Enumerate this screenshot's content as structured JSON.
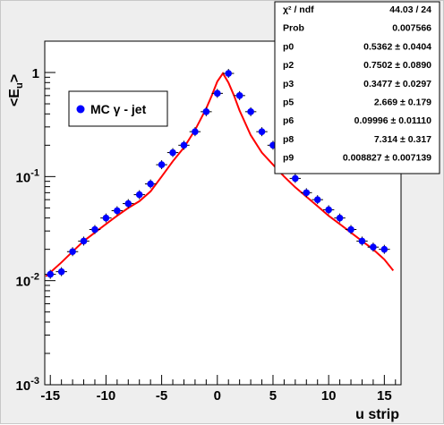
{
  "chart_data": {
    "type": "scatter",
    "xlabel": "u strip",
    "ylabel": "<E_u>",
    "xlim": [
      -15.5,
      16.5
    ],
    "ylim": [
      0.001,
      2
    ],
    "yscale": "log",
    "grid": false,
    "legend_position": "top-left",
    "x_ticks": [
      -15,
      -10,
      -5,
      0,
      5,
      10,
      15
    ],
    "y_ticks": [
      {
        "value": 0.001,
        "label": "10^-3"
      },
      {
        "value": 0.01,
        "label": "10^-2"
      },
      {
        "value": 0.1,
        "label": "10^-1"
      },
      {
        "value": 1,
        "label": "1"
      }
    ],
    "series": [
      {
        "name": "MC γ - jet",
        "type": "scatter",
        "color": "#0000ff",
        "x": [
          -15,
          -14,
          -13,
          -12,
          -11,
          -10,
          -9,
          -8,
          -7,
          -6,
          -5,
          -4,
          -3,
          -2,
          -1,
          0,
          1,
          2,
          3,
          4,
          5,
          6,
          7,
          8,
          9,
          10,
          11,
          12,
          13,
          14,
          15
        ],
        "y": [
          0.0115,
          0.0122,
          0.019,
          0.024,
          0.031,
          0.04,
          0.047,
          0.055,
          0.067,
          0.085,
          0.13,
          0.17,
          0.2,
          0.27,
          0.42,
          0.63,
          0.98,
          0.6,
          0.42,
          0.27,
          0.2,
          0.14,
          0.096,
          0.07,
          0.06,
          0.048,
          0.04,
          0.031,
          0.024,
          0.021,
          0.02
        ]
      },
      {
        "name": "fit",
        "type": "line",
        "color": "#ff0000",
        "x": [
          -15.4,
          -15,
          -14,
          -13,
          -12,
          -11,
          -10,
          -9,
          -8,
          -7,
          -6,
          -5,
          -4,
          -3,
          -2,
          -1,
          -0.5,
          0,
          0.5,
          1,
          1.5,
          2,
          3,
          4,
          5,
          6,
          7,
          8,
          9,
          10,
          11,
          12,
          13,
          14,
          15,
          15.8
        ],
        "y": [
          0.011,
          0.012,
          0.015,
          0.019,
          0.024,
          0.029,
          0.035,
          0.042,
          0.05,
          0.058,
          0.072,
          0.1,
          0.14,
          0.19,
          0.28,
          0.45,
          0.6,
          0.82,
          0.98,
          0.8,
          0.6,
          0.43,
          0.25,
          0.17,
          0.13,
          0.1,
          0.079,
          0.064,
          0.052,
          0.042,
          0.035,
          0.029,
          0.024,
          0.02,
          0.016,
          0.0125
        ]
      }
    ],
    "stats_box": [
      {
        "name": "χ² / ndf",
        "value": "44.03 / 24"
      },
      {
        "name": "Prob",
        "value": "0.007566"
      },
      {
        "name": "p0",
        "value": "0.5362 ± 0.0404"
      },
      {
        "name": "p2",
        "value": "0.7502 ± 0.0890"
      },
      {
        "name": "p3",
        "value": "0.3477 ± 0.0297"
      },
      {
        "name": "p5",
        "value": "2.669 ± 0.179"
      },
      {
        "name": "p6",
        "value": "0.09996 ± 0.01110"
      },
      {
        "name": "p8",
        "value": "7.314 ± 0.317"
      },
      {
        "name": "p9",
        "value": "0.008827 ± 0.007139"
      }
    ]
  }
}
